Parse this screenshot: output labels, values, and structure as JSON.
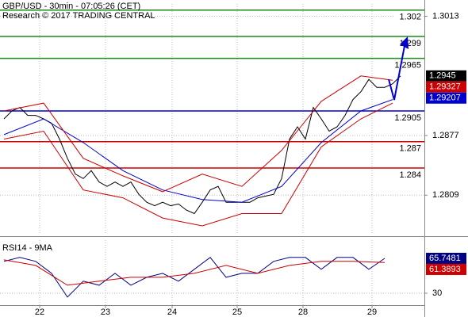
{
  "chart_data": [
    {
      "type": "line",
      "title": "GBP/USD - 30min - 07:05:26 (CET)",
      "subtitle": "Research © 2017 TRADING CENTRAL",
      "x": [
        0,
        1,
        2,
        3,
        4,
        5,
        6,
        7,
        8,
        9,
        10,
        11,
        12,
        13,
        14,
        15,
        16,
        17,
        18,
        19,
        20,
        21,
        22,
        23,
        24,
        25,
        26,
        27,
        28,
        29,
        30,
        31,
        32,
        33,
        34,
        35,
        36,
        37,
        38,
        39,
        40,
        41,
        42,
        43,
        44,
        45,
        46,
        47,
        48,
        49,
        50
      ],
      "xlim": [
        -0.5,
        53
      ],
      "xticks": [
        {
          "value": 4.5,
          "label": "22"
        },
        {
          "value": 12.8,
          "label": "23"
        },
        {
          "value": 21.2,
          "label": "24"
        },
        {
          "value": 29.4,
          "label": "25"
        },
        {
          "value": 37.7,
          "label": "28"
        },
        {
          "value": 46.4,
          "label": "29"
        }
      ],
      "ylim": [
        1.2765,
        1.3027
      ],
      "yticks": [
        1.3013,
        1.2877,
        1.2809
      ],
      "grid": true,
      "series": [
        {
          "color": "#000000",
          "values": [
            1.2896,
            1.2905,
            1.2909,
            1.29,
            1.29,
            1.2896,
            1.2891,
            1.2873,
            1.2851,
            1.2833,
            1.2828,
            1.2837,
            1.2824,
            1.2819,
            1.2824,
            1.2819,
            1.2824,
            1.281,
            1.2801,
            1.2797,
            1.2801,
            1.2797,
            1.2799,
            1.2792,
            1.2788,
            1.2801,
            1.2815,
            1.2819,
            1.2801,
            1.2801,
            1.2801,
            1.2801,
            1.2806,
            1.2808,
            1.281,
            1.2828,
            1.2873,
            1.2887,
            1.2873,
            1.2909,
            1.2896,
            1.2882,
            1.2887,
            1.29,
            1.2918,
            1.2927,
            1.2941,
            1.2932,
            1.2932,
            1.2936,
            1.2945
          ]
        },
        {
          "color": "#0000cc",
          "x": [
            0,
            5,
            10,
            15,
            20,
            25,
            30,
            35,
            40,
            45,
            49
          ],
          "values": [
            1.2878,
            1.2896,
            1.2869,
            1.2837,
            1.2815,
            1.2804,
            1.2801,
            1.2819,
            1.2869,
            1.2905,
            1.2918
          ]
        },
        {
          "color": "#cc0000",
          "x": [
            0,
            5,
            10,
            15,
            20,
            25,
            30,
            35,
            40,
            45,
            49
          ],
          "values": [
            1.2905,
            1.2914,
            1.2851,
            1.2831,
            1.2813,
            1.2833,
            1.2819,
            1.286,
            1.2916,
            1.2945,
            1.294
          ]
        },
        {
          "color": "#cc0000",
          "x": [
            0,
            5,
            10,
            15,
            20,
            25,
            30,
            35,
            40,
            45,
            49
          ],
          "values": [
            1.2873,
            1.2882,
            1.2815,
            1.2806,
            1.2783,
            1.2774,
            1.2788,
            1.2788,
            1.2864,
            1.2896,
            1.2914
          ]
        }
      ],
      "levels": [
        {
          "value": 1.302,
          "color": "#1a8a1a"
        },
        {
          "value": 1.299,
          "color": "#1a8a1a"
        },
        {
          "value": 1.2965,
          "color": "#1a8a1a"
        },
        {
          "value": 1.2905,
          "color": "#0000cc"
        },
        {
          "value": 1.287,
          "color": "#cc0000"
        },
        {
          "value": 1.284,
          "color": "#cc0000"
        }
      ],
      "last_values": [
        {
          "value": 1.2945,
          "color": "#000000"
        },
        {
          "value": 1.29327,
          "color": "#cc0000"
        },
        {
          "value": 1.29207,
          "color": "#0000cc"
        }
      ]
    },
    {
      "type": "line",
      "title": "RSI14 - 9MA",
      "x": [
        0,
        2,
        4,
        6,
        8,
        10,
        12,
        14,
        16,
        18,
        20,
        22,
        24,
        26,
        28,
        30,
        32,
        34,
        36,
        38,
        40,
        42,
        44,
        46,
        48
      ],
      "xlim": [
        -0.5,
        53
      ],
      "ylim": [
        17.8,
        84.4
      ],
      "yticks": [
        30
      ],
      "grid": true,
      "series": [
        {
          "color": "#000080",
          "values": [
            62.6,
            66.7,
            62.6,
            50.4,
            26.0,
            42.3,
            38.2,
            50.4,
            38.2,
            46.3,
            50.4,
            42.3,
            54.5,
            66.7,
            46.3,
            50.4,
            50.4,
            62.6,
            66.7,
            66.7,
            54.5,
            66.7,
            66.7,
            54.5,
            65.7
          ]
        },
        {
          "color": "#cc0000",
          "x": [
            0,
            4,
            8,
            12,
            16,
            20,
            24,
            28,
            32,
            36,
            40,
            44,
            48
          ],
          "values": [
            64.2,
            58.5,
            38.2,
            42.3,
            46.3,
            46.3,
            50.4,
            58.5,
            50.4,
            58.5,
            62.6,
            62.6,
            61.4
          ]
        }
      ],
      "last_values": [
        {
          "value": 65.7481,
          "color": "#000080"
        },
        {
          "value": 61.3893,
          "color": "#cc0000"
        }
      ]
    }
  ]
}
